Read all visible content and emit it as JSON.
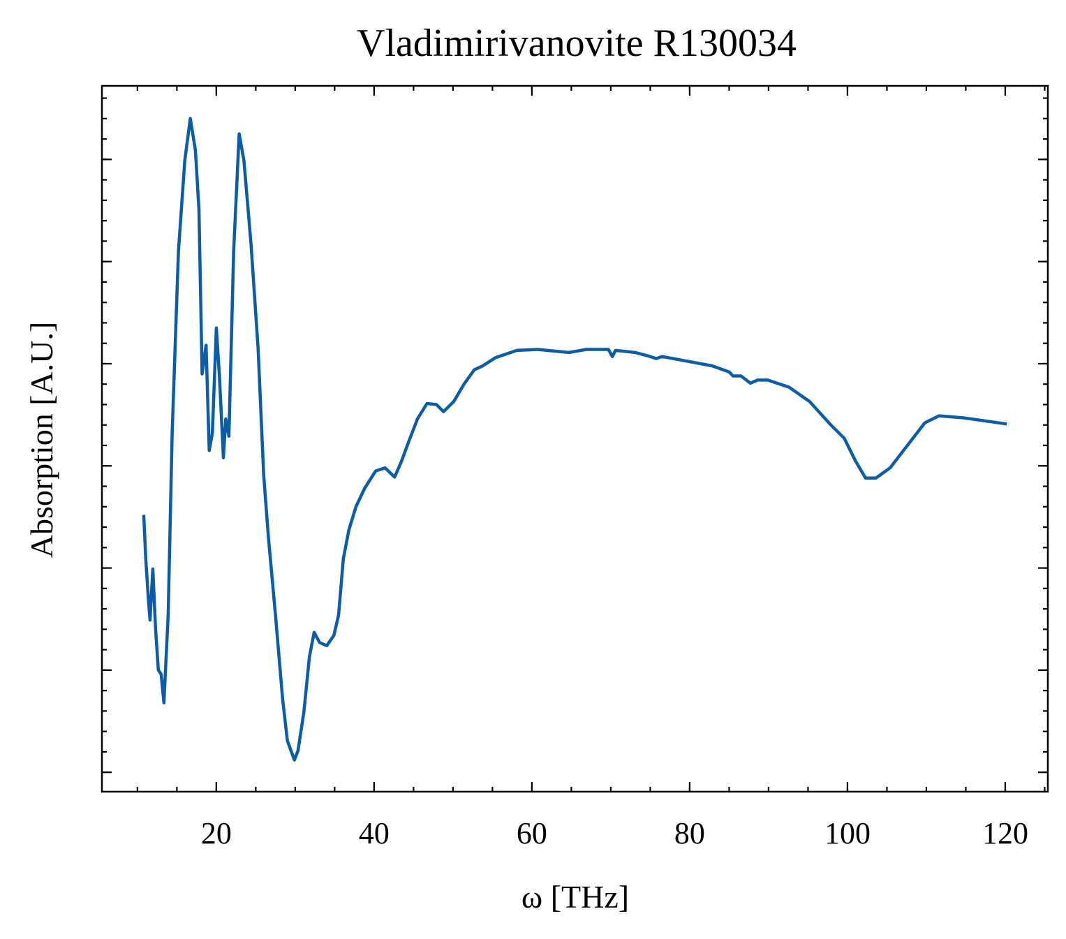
{
  "chart_data": {
    "type": "line",
    "title": "Vladimirivanovite R130034",
    "x_label": "ω [THz]",
    "y_label": "Absorption [A.U.]",
    "xlim": [
      5.5,
      125.4
    ],
    "ylim": [
      -0.19,
      6.72
    ],
    "xticks": [
      20,
      40,
      60,
      80,
      100,
      120
    ],
    "yticks": [
      0,
      1,
      2,
      3,
      4,
      5,
      6
    ],
    "x": [
      10.8,
      11.06,
      11.4,
      11.6,
      11.95,
      12.3,
      12.65,
      13.0,
      13.36,
      13.9,
      14.4,
      15.2,
      16.0,
      16.7,
      17.35,
      17.8,
      18.2,
      18.7,
      19.1,
      19.5,
      20.0,
      20.4,
      20.9,
      21.2,
      21.6,
      22.2,
      22.9,
      23.5,
      24.4,
      25.3,
      26.0,
      26.6,
      27.5,
      28.4,
      29.0,
      29.9,
      30.35,
      31.1,
      31.8,
      32.4,
      33.1,
      34.0,
      34.9,
      35.5,
      36.1,
      36.8,
      37.7,
      38.8,
      40.2,
      41.4,
      42.6,
      43.5,
      44.3,
      45.5,
      46.7,
      47.9,
      48.8,
      50.1,
      51.4,
      52.7,
      53.8,
      55.4,
      58.1,
      60.7,
      64.7,
      66.9,
      69.7,
      70.2,
      70.6,
      73.1,
      75.0,
      75.75,
      76.5,
      79.3,
      82.8,
      85.0,
      85.5,
      86.5,
      87.7,
      88.6,
      89.9,
      92.6,
      95.2,
      97.9,
      99.6,
      101.0,
      102.3,
      103.6,
      105.4,
      107.6,
      109.8,
      111.6,
      114.7,
      120.2
    ],
    "series": [
      {
        "name": "Vladimirivanovite R130034",
        "color": "#0c5da5",
        "values": [
          2.52,
          2.09,
          1.68,
          1.49,
          1.99,
          1.41,
          1.0,
          0.96,
          0.68,
          1.54,
          3.32,
          5.1,
          5.99,
          6.4,
          6.09,
          5.51,
          3.9,
          4.18,
          3.15,
          3.32,
          4.35,
          3.87,
          3.08,
          3.46,
          3.29,
          5.1,
          6.25,
          5.99,
          5.17,
          4.14,
          2.91,
          2.3,
          1.54,
          0.72,
          0.31,
          0.12,
          0.21,
          0.59,
          1.13,
          1.37,
          1.27,
          1.24,
          1.34,
          1.54,
          2.09,
          2.37,
          2.6,
          2.78,
          2.95,
          2.98,
          2.89,
          3.05,
          3.22,
          3.46,
          3.61,
          3.6,
          3.53,
          3.63,
          3.8,
          3.94,
          3.98,
          4.06,
          4.13,
          4.14,
          4.11,
          4.14,
          4.14,
          4.07,
          4.13,
          4.11,
          4.07,
          4.05,
          4.07,
          4.03,
          3.98,
          3.92,
          3.88,
          3.88,
          3.81,
          3.84,
          3.84,
          3.77,
          3.63,
          3.4,
          3.27,
          3.05,
          2.88,
          2.88,
          2.98,
          3.2,
          3.42,
          3.49,
          3.47,
          3.41
        ]
      }
    ]
  }
}
